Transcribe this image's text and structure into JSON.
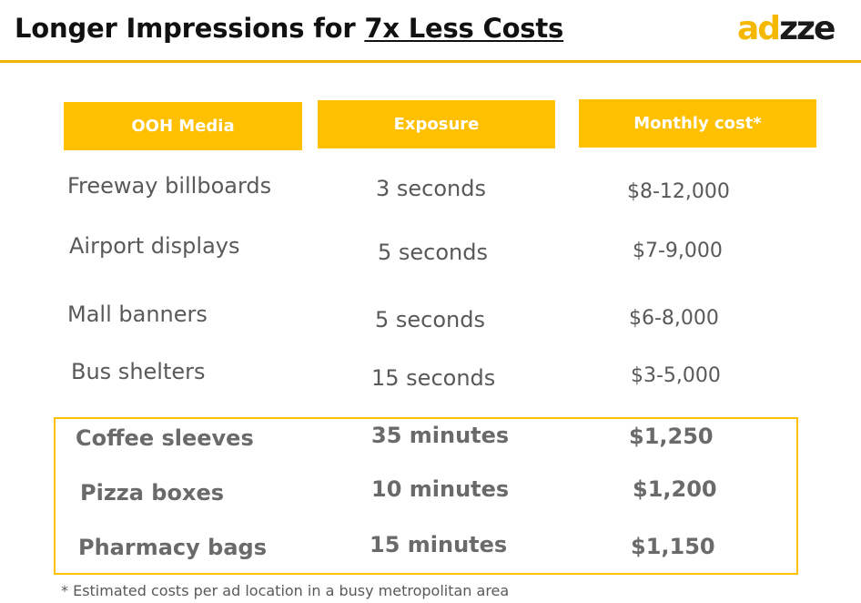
{
  "header": {
    "title_prefix": "Longer Impressions for ",
    "title_emphasis": "7x Less Costs",
    "logo_part1": "ad",
    "logo_part2": "zze",
    "accent_color": "#FFC000"
  },
  "table": {
    "columns": [
      "OOH Media",
      "Exposure",
      "Monthly cost*"
    ],
    "rows": [
      {
        "media": "Freeway billboards",
        "exposure": "3 seconds",
        "cost": "$8-12,000"
      },
      {
        "media": "Airport displays",
        "exposure": "5 seconds",
        "cost": "$7-9,000"
      },
      {
        "media": "Mall banners",
        "exposure": "5 seconds",
        "cost": "$6-8,000"
      },
      {
        "media": "Bus shelters",
        "exposure": "15 seconds",
        "cost": "$3-5,000"
      }
    ],
    "highlighted_rows": [
      {
        "media": "Coffee sleeves",
        "exposure": "35 minutes",
        "cost": "$1,250"
      },
      {
        "media": "Pizza boxes",
        "exposure": "10 minutes",
        "cost": "$1,200"
      },
      {
        "media": "Pharmacy bags",
        "exposure": "15 minutes",
        "cost": "$1,150"
      }
    ]
  },
  "footnote": "* Estimated costs per ad location in a busy metropolitan area"
}
